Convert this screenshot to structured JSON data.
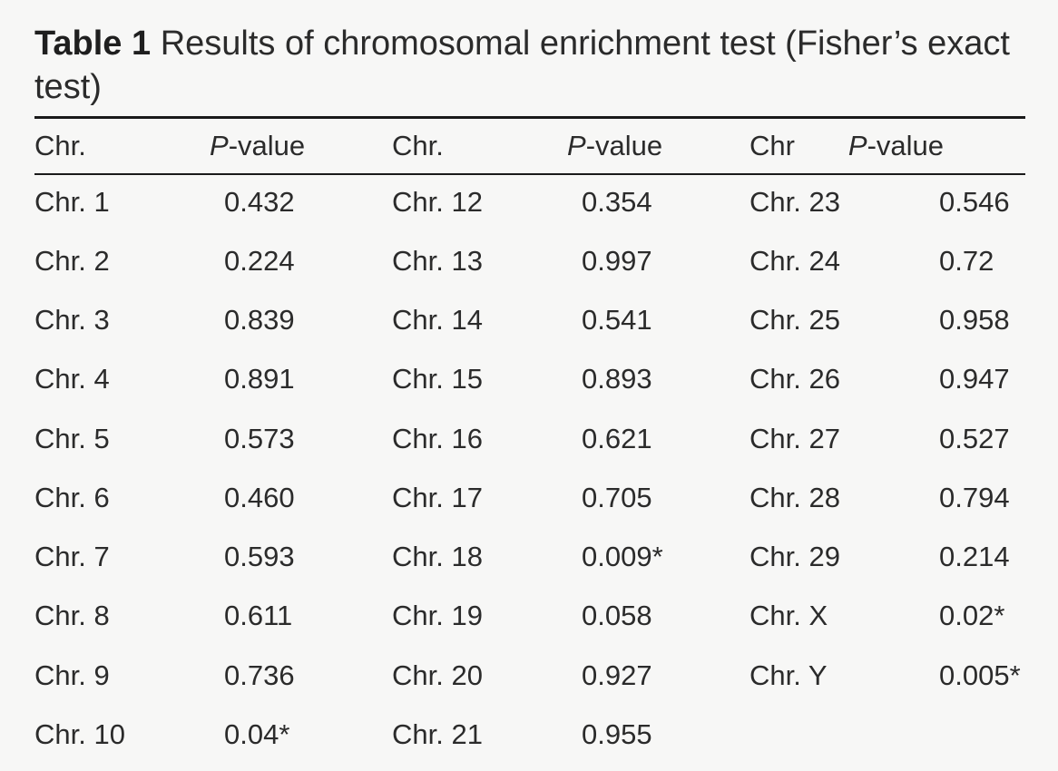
{
  "caption": {
    "label": "Table 1",
    "text": "Results of chromosomal enrichment test (Fisher’s exact test)"
  },
  "headers": [
    "Chr.",
    "P-value",
    "Chr.",
    "P-value",
    "Chr",
    "P-value"
  ],
  "header_pvalue": {
    "italic": "P",
    "rest": "-value"
  },
  "rows": [
    [
      "Chr. 1",
      "0.432",
      "Chr. 12",
      "0.354",
      "Chr. 23",
      "0.546"
    ],
    [
      "Chr. 2",
      "0.224",
      "Chr. 13",
      "0.997",
      "Chr. 24",
      "0.72"
    ],
    [
      "Chr. 3",
      "0.839",
      "Chr. 14",
      "0.541",
      "Chr. 25",
      "0.958"
    ],
    [
      "Chr. 4",
      "0.891",
      "Chr. 15",
      "0.893",
      "Chr. 26",
      "0.947"
    ],
    [
      "Chr. 5",
      "0.573",
      "Chr. 16",
      "0.621",
      "Chr. 27",
      "0.527"
    ],
    [
      "Chr. 6",
      "0.460",
      "Chr. 17",
      "0.705",
      "Chr. 28",
      "0.794"
    ],
    [
      "Chr. 7",
      "0.593",
      "Chr. 18",
      "0.009*",
      "Chr. 29",
      "0.214"
    ],
    [
      "Chr. 8",
      "0.611",
      "Chr. 19",
      "0.058",
      "Chr. X",
      "0.02*"
    ],
    [
      "Chr. 9",
      "0.736",
      "Chr. 20",
      "0.927",
      "Chr. Y",
      "0.005*"
    ],
    [
      "Chr. 10",
      "0.04*",
      "Chr. 21",
      "0.955",
      "",
      ""
    ]
  ]
}
